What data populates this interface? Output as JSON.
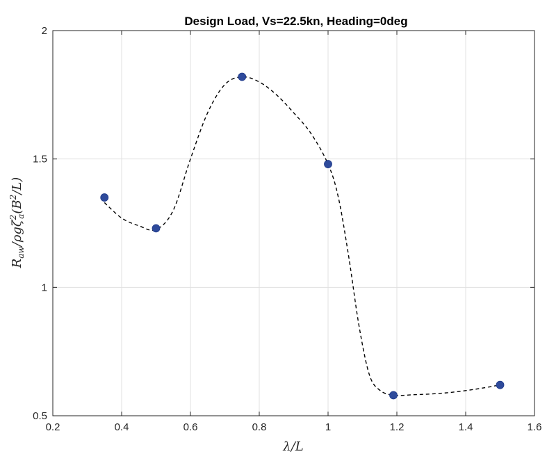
{
  "chart_data": {
    "type": "line",
    "title": "Design Load, Vs=22.5kn, Heading=0deg",
    "xlabel": {
      "main": "λ/L"
    },
    "ylabel": {
      "a": "R",
      "a_sub": "aw",
      "b": "/ρgζ",
      "b_sup": "2",
      "b_sub": "a",
      "c": "(B",
      "c_sup": "2",
      "d": "/L)"
    },
    "xlim": [
      0.2,
      1.6
    ],
    "ylim": [
      0.5,
      2.0
    ],
    "xticks": [
      0.2,
      0.4,
      0.6,
      0.8,
      1.0,
      1.2,
      1.4,
      1.6
    ],
    "xtick_labels": [
      "0.2",
      "0.4",
      "0.6",
      "0.8",
      "1",
      "1.2",
      "1.4",
      "1.6"
    ],
    "yticks": [
      0.5,
      1.0,
      1.5,
      2.0
    ],
    "ytick_labels": [
      "0.5",
      "1",
      "1.5",
      "2"
    ],
    "grid": true,
    "series": [
      {
        "style": "markers",
        "x": [
          0.35,
          0.5,
          0.75,
          1.0,
          1.19,
          1.5
        ],
        "y": [
          1.35,
          1.23,
          1.82,
          1.48,
          0.58,
          0.62
        ],
        "color": "#2e4a9b"
      },
      {
        "style": "dashed-fit",
        "x": [
          0.35,
          0.4,
          0.45,
          0.5,
          0.55,
          0.6,
          0.65,
          0.7,
          0.75,
          0.8,
          0.85,
          0.9,
          0.95,
          1.0,
          1.03,
          1.06,
          1.09,
          1.12,
          1.15,
          1.19,
          1.25,
          1.3,
          1.35,
          1.4,
          1.45,
          1.5
        ],
        "y": [
          1.33,
          1.27,
          1.24,
          1.225,
          1.3,
          1.5,
          1.68,
          1.79,
          1.82,
          1.8,
          1.75,
          1.68,
          1.6,
          1.48,
          1.35,
          1.12,
          0.85,
          0.66,
          0.6,
          0.58,
          0.582,
          0.585,
          0.59,
          0.598,
          0.608,
          0.62
        ],
        "color": "#000000"
      }
    ]
  }
}
